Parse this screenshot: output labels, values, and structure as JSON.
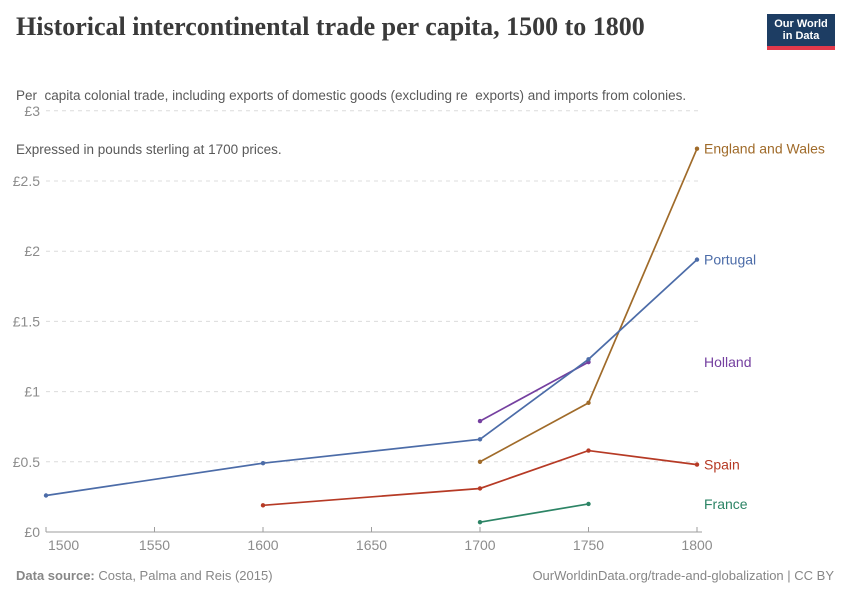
{
  "header": {
    "title": "Historical intercontinental trade per capita, 1500 to 1800",
    "subtitle_line1": "Per  capita colonial trade, including exports of domestic goods (excluding re  exports) and imports from colonies.",
    "subtitle_line2": "Expressed in pounds sterling at 1700 prices.",
    "logo_line1": "Our World",
    "logo_line2": "in Data",
    "logo_bg_color": "#1d3d63",
    "logo_stripe_color": "#e2394b"
  },
  "footer": {
    "source_label": "Data source:",
    "source_value": "Costa, Palma and Reis (2015)",
    "credit": "OurWorldinData.org/trade-and-globalization | CC BY"
  },
  "chart_data": {
    "type": "line",
    "title": "Historical intercontinental trade per capita, 1500 to 1800",
    "subtitle": "Per capita colonial trade, including exports of domestic goods (excluding re exports) and imports from colonies. Expressed in pounds sterling at 1700 prices.",
    "unit": "pounds sterling at 1700 prices",
    "xlim": [
      1500,
      1800
    ],
    "ylim": [
      0,
      3
    ],
    "grid": "horizontal-dashed",
    "legend_position": "right-edge-labels",
    "x_ticks": [
      1500,
      1550,
      1600,
      1650,
      1700,
      1750,
      1800
    ],
    "y_ticks": [
      0,
      0.5,
      1,
      1.5,
      2,
      2.5,
      3
    ],
    "y_tick_labels": [
      "£0",
      "£0.5",
      "£1",
      "£1.5",
      "£2",
      "£2.5",
      "£3"
    ],
    "axis_color": "#9e9e9e",
    "grid_color": "#dcdcdc",
    "tick_label_color": "#8c8c8c",
    "series": [
      {
        "name": "England and Wales",
        "color": "#a06b2a",
        "points": [
          [
            1700,
            0.5
          ],
          [
            1750,
            0.92
          ],
          [
            1800,
            2.73
          ]
        ]
      },
      {
        "name": "Portugal",
        "color": "#4c6ca8",
        "points": [
          [
            1500,
            0.26
          ],
          [
            1600,
            0.49
          ],
          [
            1700,
            0.66
          ],
          [
            1750,
            1.23
          ],
          [
            1800,
            1.94
          ]
        ]
      },
      {
        "name": "Holland",
        "color": "#7540a0",
        "points": [
          [
            1700,
            0.79
          ],
          [
            1750,
            1.21
          ]
        ]
      },
      {
        "name": "Spain",
        "color": "#b63a25",
        "points": [
          [
            1600,
            0.19
          ],
          [
            1700,
            0.31
          ],
          [
            1750,
            0.58
          ],
          [
            1800,
            0.48
          ]
        ]
      },
      {
        "name": "France",
        "color": "#2c8465",
        "points": [
          [
            1700,
            0.07
          ],
          [
            1750,
            0.2
          ]
        ]
      }
    ]
  }
}
